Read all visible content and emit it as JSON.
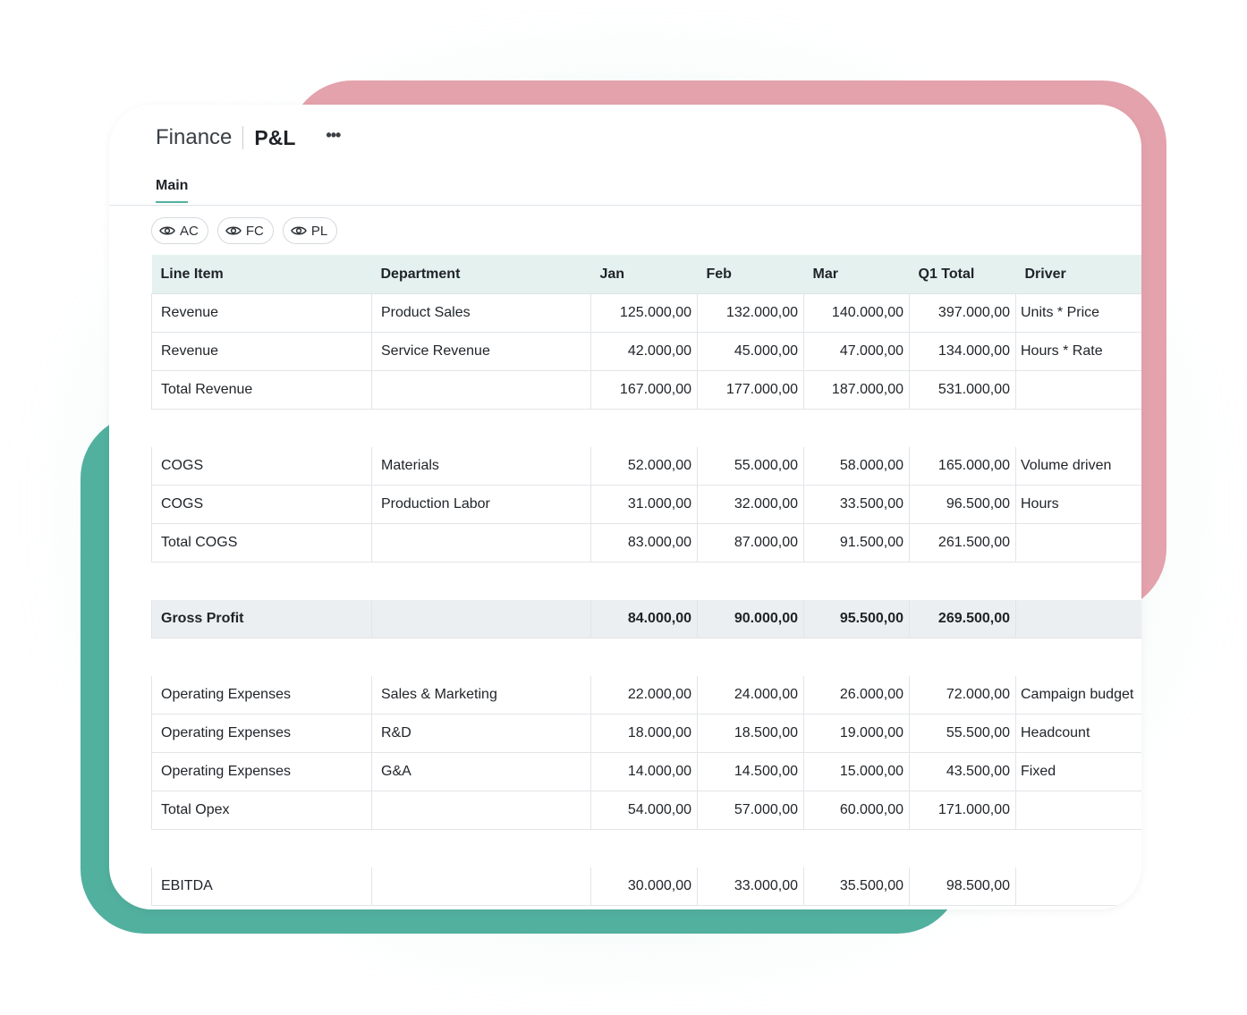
{
  "app": {
    "name": "Finance",
    "page": "P&L",
    "more": "•••"
  },
  "tabs": [
    {
      "label": "Main"
    }
  ],
  "chips": [
    {
      "label": "AC"
    },
    {
      "label": "FC"
    },
    {
      "label": "PL"
    }
  ],
  "table": {
    "headers": [
      "Line Item",
      "Department",
      "Jan",
      "Feb",
      "Mar",
      "Q1 Total",
      "Driver"
    ],
    "groups": [
      {
        "rows": [
          [
            "Revenue",
            "Product Sales",
            "125.000,00",
            "132.000,00",
            "140.000,00",
            "397.000,00",
            "Units * Price"
          ],
          [
            "Revenue",
            "Service Revenue",
            "42.000,00",
            "45.000,00",
            "47.000,00",
            "134.000,00",
            "Hours * Rate"
          ],
          [
            "Total Revenue",
            "",
            "167.000,00",
            "177.000,00",
            "187.000,00",
            "531.000,00",
            ""
          ]
        ]
      },
      {
        "rows": [
          [
            "COGS",
            "Materials",
            "52.000,00",
            "55.000,00",
            "58.000,00",
            "165.000,00",
            "Volume driven"
          ],
          [
            "COGS",
            "Production Labor",
            "31.000,00",
            "32.000,00",
            "33.500,00",
            "96.500,00",
            "Hours"
          ],
          [
            "Total COGS",
            "",
            "83.000,00",
            "87.000,00",
            "91.500,00",
            "261.500,00",
            ""
          ]
        ]
      },
      {
        "highlight": true,
        "rows": [
          [
            "Gross Profit",
            "",
            "84.000,00",
            "90.000,00",
            "95.500,00",
            "269.500,00",
            ""
          ]
        ]
      },
      {
        "rows": [
          [
            "Operating Expenses",
            "Sales & Marketing",
            "22.000,00",
            "24.000,00",
            "26.000,00",
            "72.000,00",
            "Campaign budget"
          ],
          [
            "Operating Expenses",
            "R&D",
            "18.000,00",
            "18.500,00",
            "19.000,00",
            "55.500,00",
            "Headcount"
          ],
          [
            "Operating Expenses",
            "G&A",
            "14.000,00",
            "14.500,00",
            "15.000,00",
            "43.500,00",
            "Fixed"
          ],
          [
            "Total Opex",
            "",
            "54.000,00",
            "57.000,00",
            "60.000,00",
            "171.000,00",
            ""
          ]
        ]
      },
      {
        "rows": [
          [
            "EBITDA",
            "",
            "30.000,00",
            "33.000,00",
            "35.500,00",
            "98.500,00",
            ""
          ]
        ]
      }
    ]
  },
  "colors": {
    "accent_teal": "#52b09f",
    "accent_pink": "#e4a2ad",
    "header_bg": "#e4f1ef",
    "highlight_bg": "#eceff2"
  }
}
